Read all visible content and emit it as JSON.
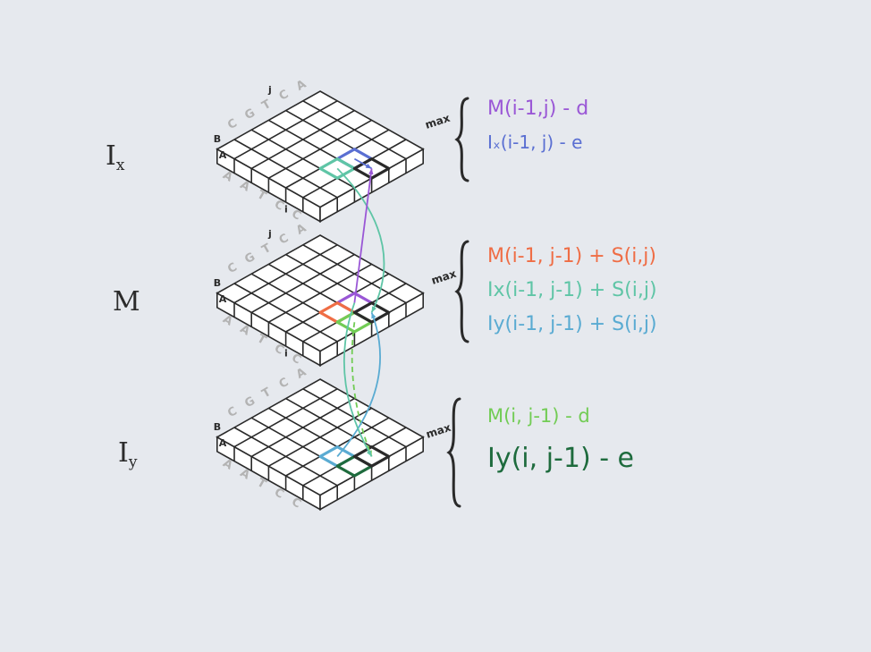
{
  "colors": {
    "m_purple": "#9a57d6",
    "ix_blue": "#5a6fd2",
    "orange": "#ef6d45",
    "teal": "#5fc5a6",
    "light_blue": "#5aabd2",
    "light_green": "#72cc55",
    "dark_green": "#1e6b3d",
    "ink": "#2a2a2a"
  },
  "layers": [
    {
      "id": "ix",
      "label_main": "I",
      "label_sub": "x",
      "seq_top": [
        "A",
        "C",
        "T",
        "G",
        "C"
      ],
      "seq_left": [
        "A",
        "A",
        "T",
        "C",
        "C"
      ],
      "row_mark": "B",
      "row_mark2": "A",
      "j_mark": "j",
      "i_mark": "i",
      "max_word": "max",
      "terms": [
        {
          "text": "M(i-1,j) - d",
          "color_key": "m_purple",
          "size": 22
        },
        {
          "text": "Iₓ(i-1, j)  - e",
          "color_key": "ix_blue",
          "size": 20
        }
      ]
    },
    {
      "id": "m",
      "label_main": "M",
      "label_sub": "",
      "seq_top": [
        "A",
        "C",
        "T",
        "G",
        "C"
      ],
      "seq_left": [
        "A",
        "A",
        "T",
        "C",
        "C"
      ],
      "row_mark": "B",
      "row_mark2": "A",
      "j_mark": "j",
      "i_mark": "i",
      "max_word": "max",
      "terms": [
        {
          "text": "M(i-1, j-1) + S(i,j)",
          "color_key": "orange",
          "size": 22
        },
        {
          "text": "Ix(i-1, j-1) + S(i,j)",
          "color_key": "teal",
          "size": 22
        },
        {
          "text": "Iy(i-1, j-1) + S(i,j)",
          "color_key": "light_blue",
          "size": 22
        }
      ]
    },
    {
      "id": "iy",
      "label_main": "I",
      "label_sub": "y",
      "seq_top": [
        "A",
        "C",
        "T",
        "G",
        "C"
      ],
      "seq_left": [
        "A",
        "A",
        "T",
        "C",
        "C"
      ],
      "row_mark": "B",
      "row_mark2": "A",
      "j_mark": "",
      "i_mark": "",
      "max_word": "max",
      "terms": [
        {
          "text": "M(i, j-1)  - d",
          "color_key": "light_green",
          "size": 21
        },
        {
          "text": "Iy(i, j-1) - e",
          "color_key": "dark_green",
          "size": 30
        }
      ]
    }
  ]
}
